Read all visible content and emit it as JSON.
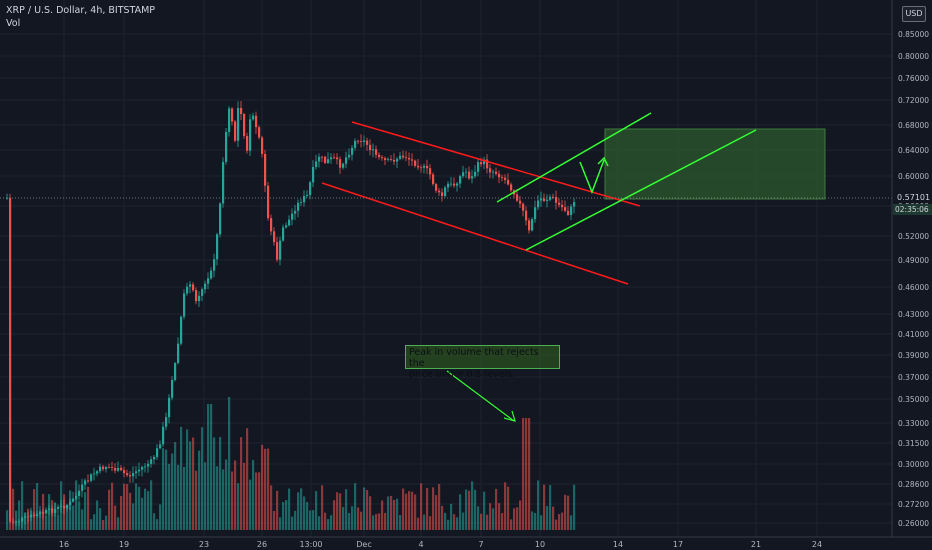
{
  "header": {
    "symbol_line": "XRP / U.S. Dollar, 4h, BITSTAMP",
    "indicator": "Vol",
    "currency": "USD"
  },
  "annotation": {
    "line1": "Peak in volume that rejects the",
    "line2": "price under 0.5 levels."
  },
  "price_badge": {
    "price": "0.57101",
    "countdown": "02:35:06"
  },
  "colors": {
    "background": "#131722",
    "up": "#26a69a",
    "down": "#ef5350",
    "channel": "#ff1a1a",
    "projection": "#33ff33",
    "target_box": "#2e5a2e",
    "axis_text": "#b2b5be"
  },
  "chart_data": {
    "type": "candlestick",
    "y_axis_ticks": [
      "0.85000",
      "0.80000",
      "0.76000",
      "0.72000",
      "0.68000",
      "0.64000",
      "0.60000",
      "0.56000",
      "0.52000",
      "0.49000",
      "0.46000",
      "0.43000",
      "0.41000",
      "0.39000",
      "0.37000",
      "0.35000",
      "0.33000",
      "0.31500",
      "0.30000",
      "0.28600",
      "0.27200",
      "0.26000"
    ],
    "x_axis_ticks": [
      "16",
      "19",
      "23",
      "26",
      "13:00",
      "Dec",
      "4",
      "7",
      "10",
      "14",
      "17",
      "21",
      "24"
    ],
    "price_scale": "log",
    "grid": true
  }
}
